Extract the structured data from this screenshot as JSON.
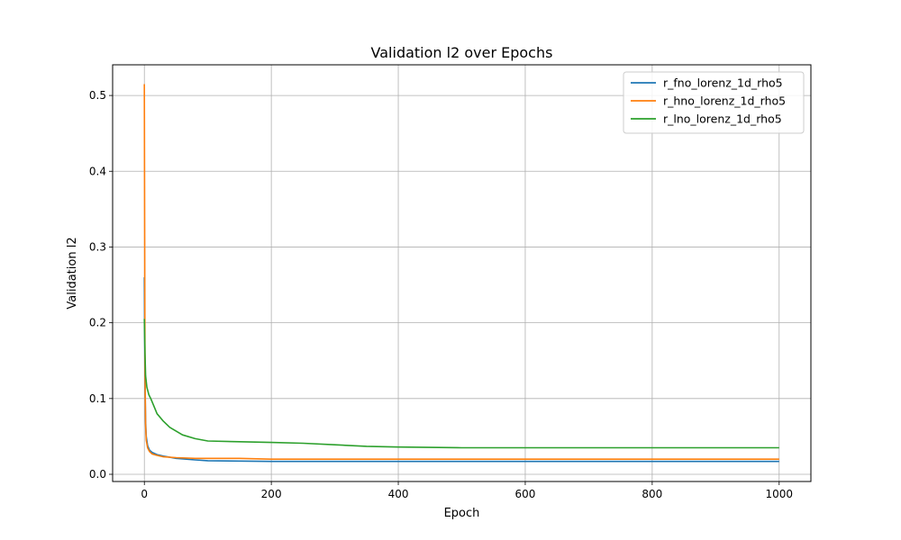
{
  "chart_data": {
    "type": "line",
    "title": "Validation l2 over Epochs",
    "xlabel": "Epoch",
    "ylabel": "Validation l2",
    "xlim": [
      -50,
      1050
    ],
    "ylim": [
      -0.0095,
      0.5405
    ],
    "xticks": [
      0,
      200,
      400,
      600,
      800,
      1000
    ],
    "yticks": [
      0.0,
      0.1,
      0.2,
      0.3,
      0.4,
      0.5
    ],
    "ytick_labels": [
      "0.0",
      "0.1",
      "0.2",
      "0.3",
      "0.4",
      "0.5"
    ],
    "grid": true,
    "legend_position": "top-right",
    "series": [
      {
        "name": "r_fno_lorenz_1d_rho5",
        "color": "#1f77b4",
        "x": [
          0,
          1,
          2,
          3,
          5,
          8,
          12,
          20,
          30,
          50,
          80,
          100,
          150,
          200,
          300,
          400,
          500,
          600,
          700,
          800,
          900,
          1000
        ],
        "y": [
          0.26,
          0.12,
          0.07,
          0.05,
          0.038,
          0.032,
          0.029,
          0.026,
          0.024,
          0.021,
          0.019,
          0.018,
          0.0175,
          0.017,
          0.017,
          0.017,
          0.017,
          0.017,
          0.017,
          0.017,
          0.017,
          0.017
        ]
      },
      {
        "name": "r_hno_lorenz_1d_rho5",
        "color": "#ff7f0e",
        "x": [
          0,
          1,
          2,
          3,
          5,
          8,
          12,
          20,
          30,
          50,
          80,
          100,
          150,
          200,
          300,
          400,
          500,
          600,
          700,
          800,
          900,
          1000
        ],
        "y": [
          0.515,
          0.14,
          0.065,
          0.045,
          0.035,
          0.03,
          0.027,
          0.025,
          0.023,
          0.022,
          0.021,
          0.021,
          0.021,
          0.02,
          0.02,
          0.02,
          0.02,
          0.02,
          0.02,
          0.02,
          0.02,
          0.02
        ]
      },
      {
        "name": "r_lno_lorenz_1d_rho5",
        "color": "#2ca02c",
        "x": [
          0,
          1,
          2,
          4,
          7,
          10,
          15,
          20,
          30,
          40,
          60,
          80,
          100,
          150,
          200,
          250,
          300,
          350,
          400,
          500,
          600,
          700,
          800,
          900,
          1000
        ],
        "y": [
          0.205,
          0.16,
          0.13,
          0.115,
          0.105,
          0.1,
          0.09,
          0.08,
          0.07,
          0.062,
          0.052,
          0.047,
          0.044,
          0.043,
          0.042,
          0.041,
          0.039,
          0.037,
          0.036,
          0.035,
          0.035,
          0.035,
          0.035,
          0.035,
          0.035
        ]
      }
    ]
  }
}
